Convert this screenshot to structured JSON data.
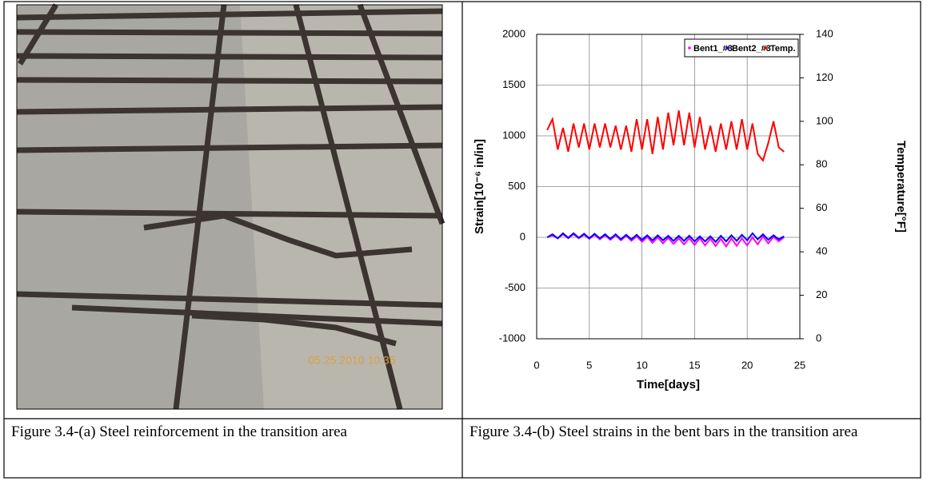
{
  "photo_timestamp": "05.25.2010 10:35",
  "captions": [
    "Figure 3.4-(a) Steel reinforcement in the transition area",
    "Figure 3.4-(b) Steel strains in the bent bars in the transition area"
  ],
  "chart_data": {
    "type": "line",
    "x_label": "Time[days]",
    "y_label": "Strain[10⁻⁶ in/in]",
    "y2_label": "Temperature[°F]",
    "x": [
      1,
      1.5,
      2,
      2.5,
      3,
      3.5,
      4,
      4.5,
      5,
      5.5,
      6,
      6.5,
      7,
      7.5,
      8,
      8.5,
      9,
      9.5,
      10,
      10.5,
      11,
      11.5,
      12,
      12.5,
      13,
      13.5,
      14,
      14.5,
      15,
      15.5,
      16,
      16.5,
      17,
      17.5,
      18,
      18.5,
      19,
      19.5,
      20,
      20.5,
      21,
      21.5,
      22,
      22.5,
      23,
      23.5
    ],
    "series": [
      {
        "name": "Bent1_#3",
        "color": "#ff00ff",
        "values": [
          0,
          20,
          -10,
          30,
          -10,
          30,
          -10,
          25,
          -15,
          25,
          -20,
          20,
          -25,
          20,
          -30,
          15,
          -35,
          10,
          -45,
          5,
          -55,
          0,
          -60,
          -5,
          -65,
          -10,
          -70,
          -10,
          -75,
          -10,
          -80,
          -15,
          -85,
          -15,
          -90,
          -10,
          -85,
          -10,
          -80,
          0,
          -70,
          10,
          -60,
          5,
          -40,
          0
        ]
      },
      {
        "name": "Bent2_#3",
        "color": "#0000ff",
        "values": [
          0,
          30,
          -10,
          40,
          -5,
          40,
          -5,
          35,
          -10,
          35,
          -10,
          30,
          -15,
          30,
          -20,
          25,
          -20,
          25,
          -25,
          20,
          -30,
          20,
          -30,
          15,
          -35,
          15,
          -35,
          15,
          -40,
          10,
          -40,
          10,
          -45,
          15,
          -40,
          20,
          -35,
          25,
          -30,
          40,
          -20,
          30,
          -25,
          20,
          -20,
          10
        ]
      },
      {
        "name": "Temp.",
        "color": "#ff0000",
        "axis": "y2",
        "values": [
          96,
          101,
          87,
          97,
          86,
          99,
          88,
          99,
          87,
          99,
          88,
          99,
          88,
          98,
          87,
          98,
          86,
          101,
          87,
          101,
          85,
          102,
          87,
          104,
          89,
          105,
          89,
          104,
          88,
          102,
          87,
          98,
          86,
          99,
          87,
          100,
          87,
          101,
          87,
          99,
          85,
          82,
          90,
          100,
          88,
          86
        ]
      }
    ],
    "xlim": [
      0,
      25
    ],
    "xticks": [
      0,
      5,
      10,
      15,
      20,
      25
    ],
    "ylim": [
      -1000,
      2000
    ],
    "yticks": [
      -1000,
      -500,
      0,
      500,
      1000,
      1500,
      2000
    ],
    "y2lim": [
      0,
      140
    ],
    "y2ticks": [
      0,
      20,
      40,
      60,
      80,
      100,
      120,
      140
    ],
    "grid": true,
    "legend": "top-right"
  }
}
